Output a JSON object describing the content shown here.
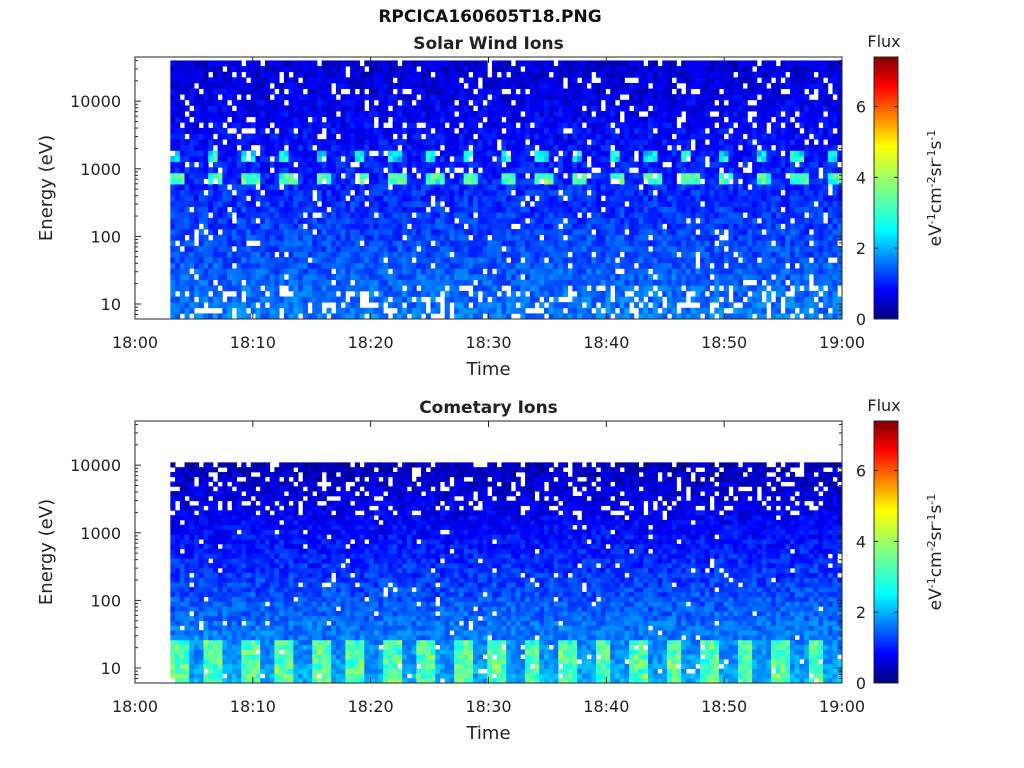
{
  "page": {
    "title": "RPCICA160605T18.PNG"
  },
  "chart_data": [
    {
      "type": "heatmap",
      "title": "Solar Wind Ions",
      "xlabel": "Time",
      "ylabel": "Energy (eV)",
      "yscale": "log",
      "xlim": [
        "18:00",
        "19:00"
      ],
      "ylim": [
        6,
        45000
      ],
      "x_ticks": [
        "18:00",
        "18:10",
        "18:20",
        "18:30",
        "18:40",
        "18:50",
        "19:00"
      ],
      "y_ticks": [
        {
          "value": 10,
          "label": "10"
        },
        {
          "value": 100,
          "label": "100"
        },
        {
          "value": 1000,
          "label": "1000"
        },
        {
          "value": 10000,
          "label": "10000"
        }
      ],
      "data_time_range": [
        "18:03",
        "19:00"
      ],
      "data_energy_range": [
        6,
        40000
      ],
      "features": [
        {
          "energy_range": [
            600,
            850
          ],
          "flux": 3.3,
          "period_minutes": 3.1,
          "duty": 0.45
        },
        {
          "energy_range": [
            1300,
            1750
          ],
          "flux": 2.7,
          "period_minutes": 3.1,
          "duty": 0.3
        }
      ],
      "background_flux": {
        "high_energy": 0.6,
        "low_energy": 1.8
      },
      "colorbar": {
        "label": "eV-1cm-2sr-1s-1",
        "title": "Flux",
        "range": [
          0,
          7.4
        ],
        "ticks": [
          0,
          2,
          4,
          6
        ]
      }
    },
    {
      "type": "heatmap",
      "title": "Cometary Ions",
      "xlabel": "Time",
      "ylabel": "Energy (eV)",
      "yscale": "log",
      "xlim": [
        "18:00",
        "19:00"
      ],
      "ylim": [
        6,
        45000
      ],
      "x_ticks": [
        "18:00",
        "18:10",
        "18:20",
        "18:30",
        "18:40",
        "18:50",
        "19:00"
      ],
      "y_ticks": [
        {
          "value": 10,
          "label": "10"
        },
        {
          "value": 100,
          "label": "100"
        },
        {
          "value": 1000,
          "label": "1000"
        },
        {
          "value": 10000,
          "label": "10000"
        }
      ],
      "data_time_range": [
        "18:03",
        "19:00"
      ],
      "data_energy_range": [
        6,
        11000
      ],
      "features": [
        {
          "energy_range": [
            6,
            25
          ],
          "flux": 3.4,
          "period_minutes": 3.0,
          "duty": 0.5
        }
      ],
      "background_flux": {
        "high_energy": 0.4,
        "low_energy": 2.2
      },
      "colorbar": {
        "label": "eV-1cm-2sr-1s-1",
        "title": "Flux",
        "range": [
          0,
          7.4
        ],
        "ticks": [
          0,
          2,
          4,
          6
        ]
      }
    }
  ]
}
